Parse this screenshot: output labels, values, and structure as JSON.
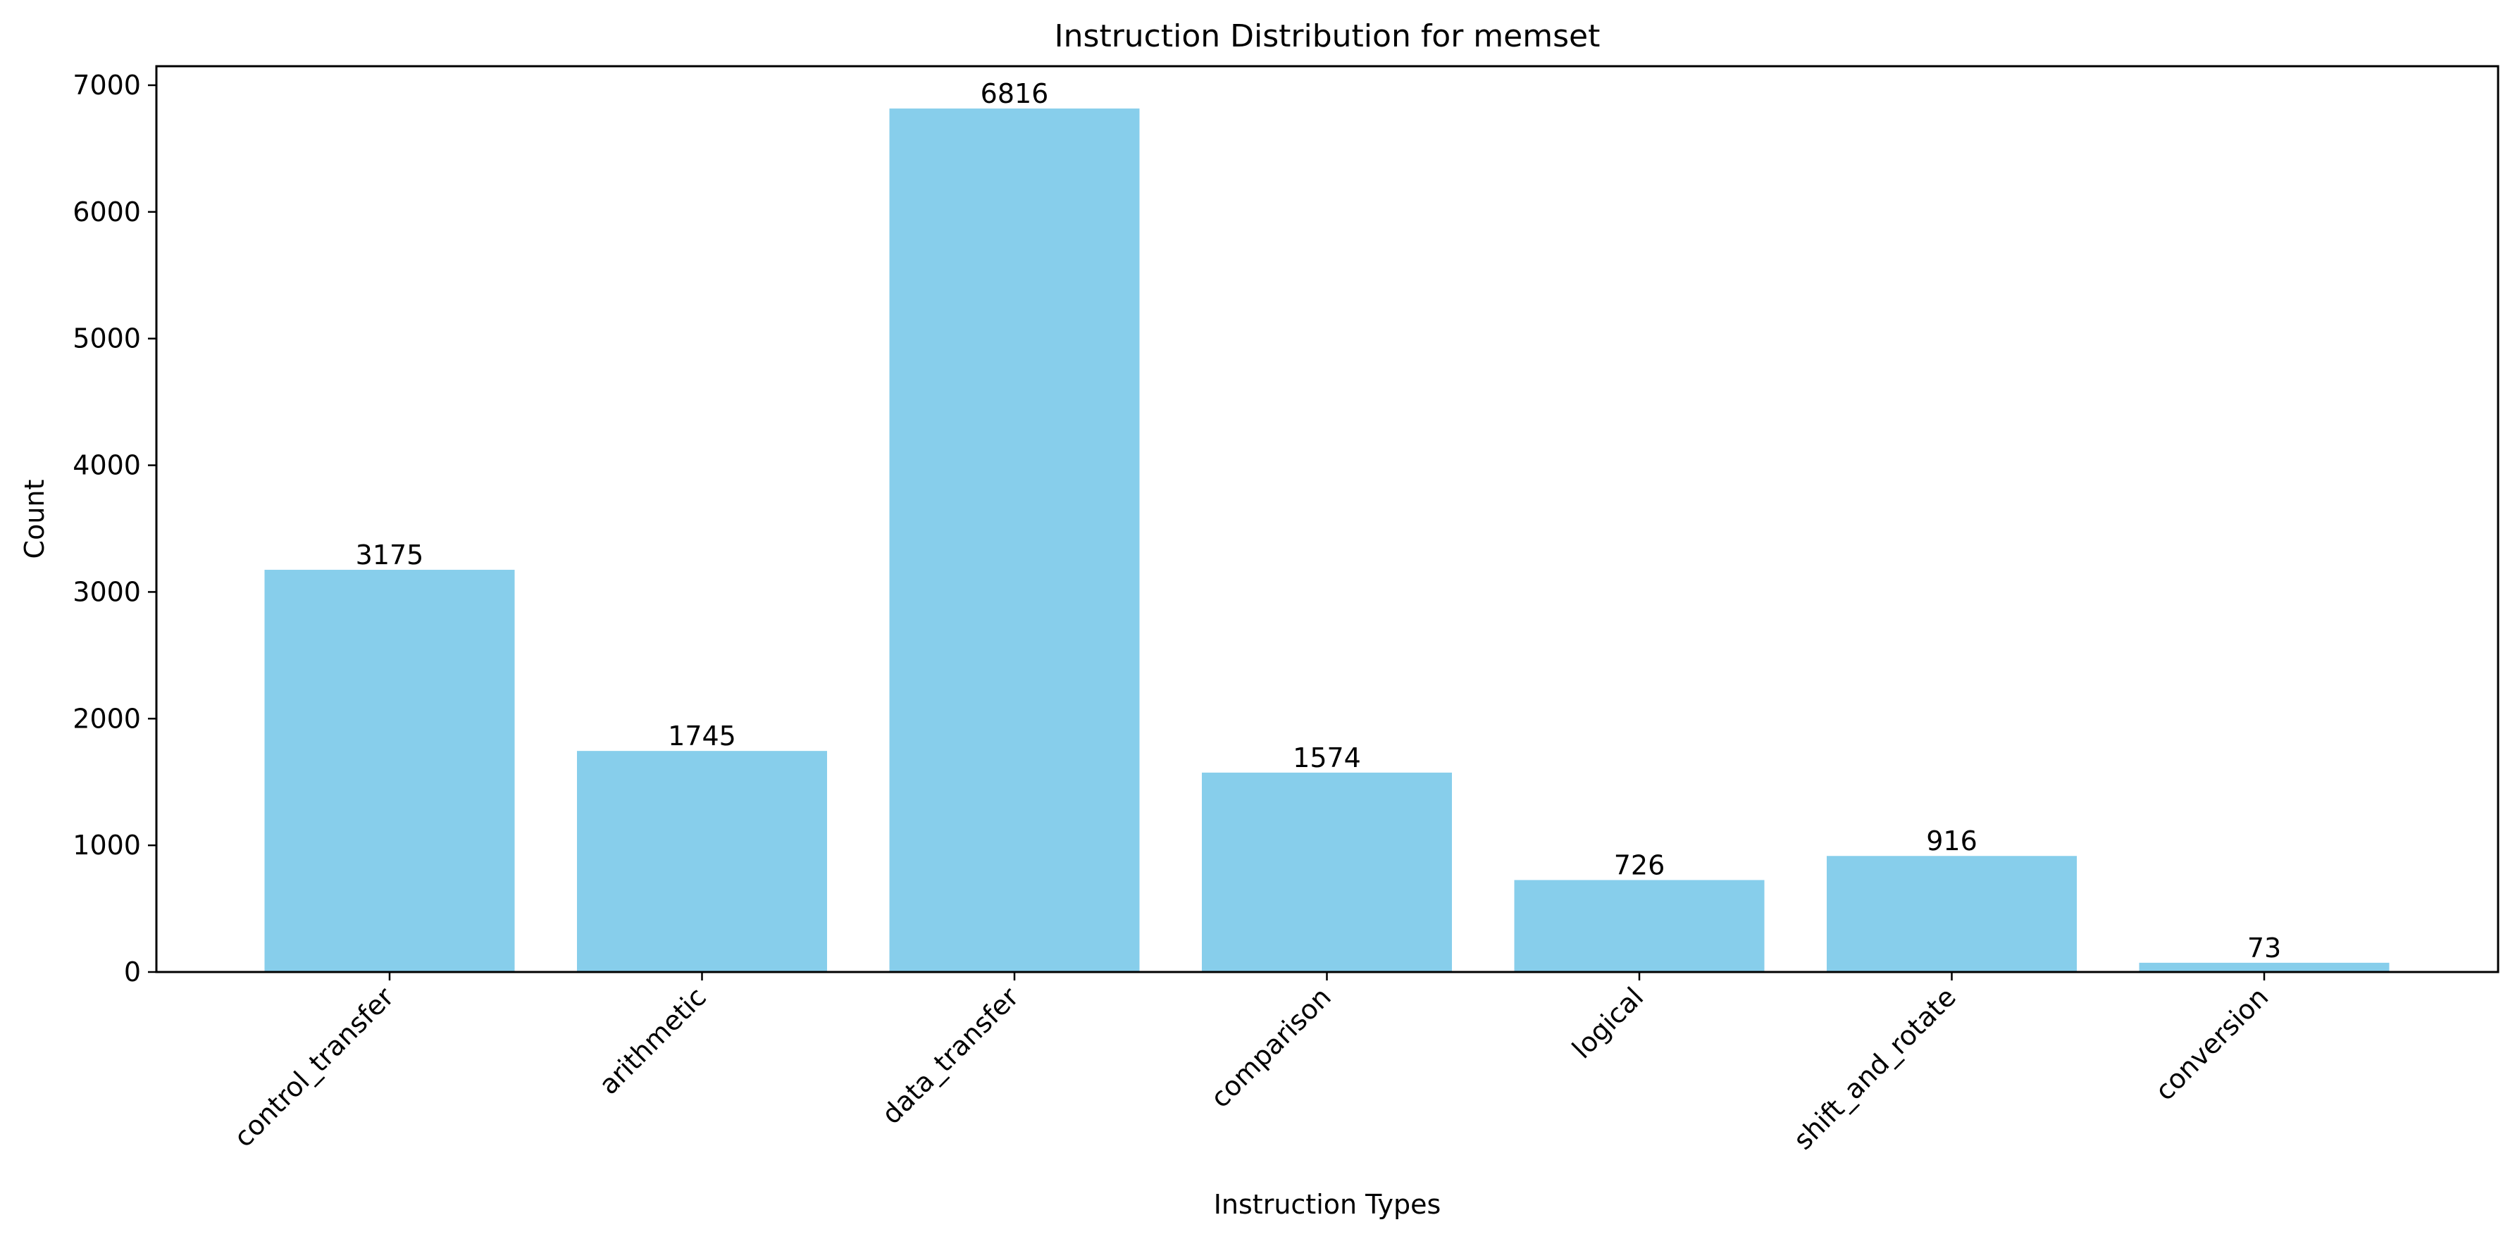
{
  "chart_data": {
    "type": "bar",
    "title": "Instruction Distribution for memset",
    "xlabel": "Instruction Types",
    "ylabel": "Count",
    "categories": [
      "control_transfer",
      "arithmetic",
      "data_transfer",
      "comparison",
      "logical",
      "shift_and_rotate",
      "conversion"
    ],
    "values": [
      3175,
      1745,
      6816,
      1574,
      726,
      916,
      73
    ],
    "data_labels": [
      "3175",
      "1745",
      "6816",
      "1574",
      "726",
      "916",
      "73"
    ],
    "ylim": [
      0,
      7150
    ],
    "yticks": [
      0,
      1000,
      2000,
      3000,
      4000,
      5000,
      6000,
      7000
    ],
    "ytick_labels": [
      "0",
      "1000",
      "2000",
      "3000",
      "4000",
      "5000",
      "6000",
      "7000"
    ],
    "grid": false,
    "legend": "none",
    "bar_color": "#87CEEB"
  }
}
